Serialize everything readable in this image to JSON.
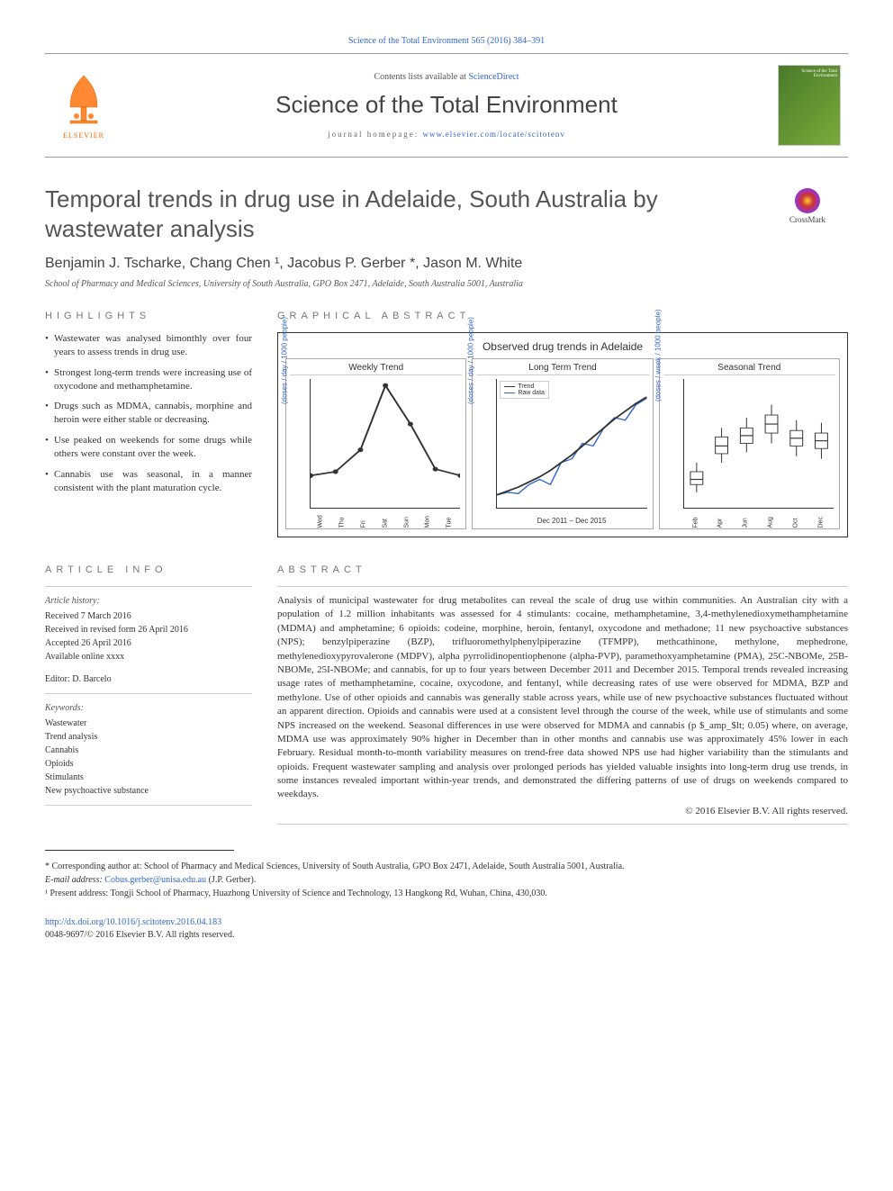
{
  "top_link": "Science of the Total Environment 565 (2016) 384–391",
  "header": {
    "contents_prefix": "Contents lists available at ",
    "contents_link": "ScienceDirect",
    "journal_title": "Science of the Total Environment",
    "homepage_prefix": "journal homepage: ",
    "homepage_url": "www.elsevier.com/locate/scitotenv",
    "elsevier_label": "ELSEVIER",
    "cover_text": "Science of the Total Environment"
  },
  "crossmark_label": "CrossMark",
  "title": "Temporal trends in drug use in Adelaide, South Australia by wastewater analysis",
  "authors": "Benjamin J. Tscharke, Chang Chen ¹, Jacobus P. Gerber *, Jason M. White",
  "affiliation": "School of Pharmacy and Medical Sciences, University of South Australia, GPO Box 2471, Adelaide, South Australia 5001, Australia",
  "highlights_header": "HIGHLIGHTS",
  "highlights": [
    "Wastewater was analysed bimonthly over four years to assess trends in drug use.",
    "Strongest long-term trends were increasing use of oxycodone and methamphetamine.",
    "Drugs such as MDMA, cannabis, morphine and heroin were either stable or decreasing.",
    "Use peaked on weekends for some drugs while others were constant over the week.",
    "Cannabis use was seasonal, in a manner consistent with the plant maturation cycle."
  ],
  "graphical_header": "GRAPHICAL ABSTRACT",
  "graphical_abstract": {
    "main_title": "Observed drug trends in Adelaide",
    "panels": [
      {
        "title": "Weekly Trend",
        "ylabel": "(doses / day / 1000 people)",
        "type": "line",
        "x_categories": [
          "Wed",
          "Thu",
          "Fri",
          "Sat",
          "Sun",
          "Mon",
          "Tue"
        ],
        "y_values": [
          0.25,
          0.28,
          0.45,
          0.95,
          0.65,
          0.3,
          0.25
        ],
        "line_color": "#333333",
        "background": "#ffffff"
      },
      {
        "title": "Long Term Trend",
        "ylabel": "(doses / day / 1000 people)",
        "type": "line_with_trend",
        "x_label": "Dec 2011 – Dec 2015",
        "raw_values": [
          0.1,
          0.12,
          0.11,
          0.18,
          0.22,
          0.18,
          0.35,
          0.38,
          0.5,
          0.48,
          0.62,
          0.7,
          0.68,
          0.8,
          0.85
        ],
        "trend_values": [
          0.1,
          0.13,
          0.16,
          0.2,
          0.24,
          0.29,
          0.35,
          0.41,
          0.48,
          0.55,
          0.62,
          0.69,
          0.75,
          0.81,
          0.86
        ],
        "raw_color": "#3366cc",
        "trend_color": "#333333",
        "legend": [
          "Trend",
          "Raw data"
        ],
        "background": "#ffffff"
      },
      {
        "title": "Seasonal Trend",
        "ylabel": "(doses / week / 1000 people)",
        "type": "boxplot",
        "x_categories": [
          "Feb",
          "Apr",
          "Jun",
          "Aug",
          "Oct",
          "Dec"
        ],
        "boxes": [
          {
            "q1": 0.18,
            "median": 0.22,
            "q3": 0.28,
            "low": 0.12,
            "high": 0.35
          },
          {
            "q1": 0.42,
            "median": 0.48,
            "q3": 0.55,
            "low": 0.35,
            "high": 0.62
          },
          {
            "q1": 0.5,
            "median": 0.56,
            "q3": 0.62,
            "low": 0.43,
            "high": 0.7
          },
          {
            "q1": 0.58,
            "median": 0.65,
            "q3": 0.72,
            "low": 0.5,
            "high": 0.8
          },
          {
            "q1": 0.48,
            "median": 0.54,
            "q3": 0.6,
            "low": 0.4,
            "high": 0.68
          },
          {
            "q1": 0.46,
            "median": 0.52,
            "q3": 0.58,
            "low": 0.38,
            "high": 0.66
          }
        ],
        "box_color": "#333333",
        "background": "#ffffff"
      }
    ]
  },
  "article_info_header": "ARTICLE INFO",
  "article_info": {
    "history_label": "Article history:",
    "received": "Received 7 March 2016",
    "revised": "Received in revised form 26 April 2016",
    "accepted": "Accepted 26 April 2016",
    "available": "Available online xxxx",
    "editor_label": "Editor: D. Barcelo",
    "keywords_label": "Keywords:",
    "keywords": [
      "Wastewater",
      "Trend analysis",
      "Cannabis",
      "Opioids",
      "Stimulants",
      "New psychoactive substance"
    ]
  },
  "abstract_header": "ABSTRACT",
  "abstract": "Analysis of municipal wastewater for drug metabolites can reveal the scale of drug use within communities. An Australian city with a population of 1.2 million inhabitants was assessed for 4 stimulants: cocaine, methamphetamine, 3,4-methylenedioxymethamphetamine (MDMA) and amphetamine; 6 opioids: codeine, morphine, heroin, fentanyl, oxycodone and methadone; 11 new psychoactive substances (NPS); benzylpiperazine (BZP), trifluoromethylphenylpiperazine (TFMPP), methcathinone, methylone, mephedrone, methylenedioxypyrovalerone (MDPV), alpha pyrrolidinopentiophenone (alpha-PVP), paramethoxyamphetamine (PMA), 25C-NBOMe, 25B-NBOMe, 25I-NBOMe; and cannabis, for up to four years between December 2011 and December 2015. Temporal trends revealed increasing usage rates of methamphetamine, cocaine, oxycodone, and fentanyl, while decreasing rates of use were observed for MDMA, BZP and methylone. Use of other opioids and cannabis was generally stable across years, while use of new psychoactive substances fluctuated without an apparent direction. Opioids and cannabis were used at a consistent level through the course of the week, while use of stimulants and some NPS increased on the weekend. Seasonal differences in use were observed for MDMA and cannabis (p $_amp_$lt; 0.05) where, on average, MDMA use was approximately 90% higher in December than in other months and cannabis use was approximately 45% lower in each February. Residual month-to-month variability measures on trend-free data showed NPS use had higher variability than the stimulants and opioids. Frequent wastewater sampling and analysis over prolonged periods has yielded valuable insights into long-term drug use trends, in some instances revealed important within-year trends, and demonstrated the differing patterns of use of drugs on weekends compared to weekdays.",
  "copyright": "© 2016 Elsevier B.V. All rights reserved.",
  "footnotes": {
    "corresponding": "* Corresponding author at: School of Pharmacy and Medical Sciences, University of South Australia, GPO Box 2471, Adelaide, South Australia 5001, Australia.",
    "email_label": "E-mail address: ",
    "email": "Cobus.gerber@unisa.edu.au",
    "email_suffix": " (J.P. Gerber).",
    "present_address": "¹ Present address: Tongji School of Pharmacy, Huazhong University of Science and Technology, 13 Hangkong Rd, Wuhan, China, 430,030."
  },
  "doi": {
    "url": "http://dx.doi.org/10.1016/j.scitotenv.2016.04.183",
    "issn_line": "0048-9697/© 2016 Elsevier B.V. All rights reserved."
  }
}
